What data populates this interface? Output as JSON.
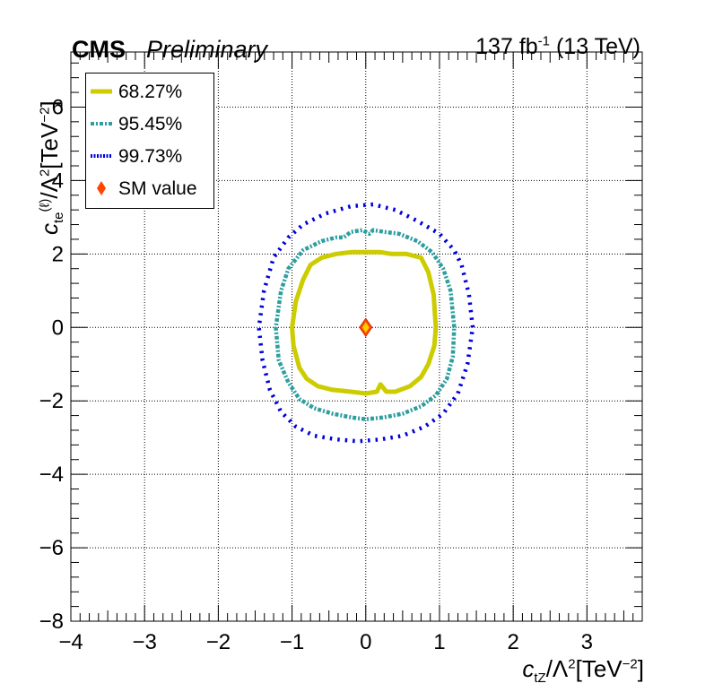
{
  "header": {
    "experiment": "CMS",
    "status": "Preliminary",
    "lumi_value": "137 fb",
    "lumi_exp": "-1",
    "lumi_energy": " (13 TeV)"
  },
  "axis_text": {
    "x_main": "c",
    "x_sub": "tZ",
    "x_rest": "/Λ",
    "x_sup2": "2",
    "x_unit": "[TeV",
    "x_unit_sup": "−2",
    "x_close": "]",
    "y_main": "c",
    "y_sub": "te",
    "y_sup": "(ℓ)",
    "y_rest": "/Λ",
    "y_sup2": "2",
    "y_unit": "[TeV",
    "y_unit_sup": "−2",
    "y_close": "]"
  },
  "legend": [
    {
      "label": "68.27%",
      "color": "#cccc00",
      "style": "solid-thick"
    },
    {
      "label": "95.45%",
      "color": "#2d9e9e",
      "style": "dash-dot"
    },
    {
      "label": "99.73%",
      "color": "#0000dd",
      "style": "dotted"
    },
    {
      "label": "SM value",
      "color": "#ff4500",
      "style": "diamond"
    }
  ],
  "chart_data": {
    "type": "line",
    "title": "",
    "xlabel": "c_tZ/Λ^2[TeV^-2]",
    "ylabel": "c_te^(ℓ)/Λ^2[TeV^-2]",
    "xlim": [
      -4,
      3.75
    ],
    "ylim": [
      -8,
      7.5
    ],
    "x_ticks": [
      -4,
      -3,
      -2,
      -1,
      0,
      1,
      2,
      3
    ],
    "y_ticks": [
      -8,
      -6,
      -4,
      -2,
      0,
      2,
      4,
      6
    ],
    "grid": true,
    "legend_position": "top-left",
    "series": [
      {
        "name": "68.27%",
        "color": "#cccc00",
        "points": [
          [
            0.95,
            0
          ],
          [
            0.92,
            0.9
          ],
          [
            0.85,
            1.5
          ],
          [
            0.75,
            1.9
          ],
          [
            0.55,
            2.0
          ],
          [
            0.35,
            2.0
          ],
          [
            0.2,
            2.05
          ],
          [
            0,
            2.05
          ],
          [
            -0.2,
            2.05
          ],
          [
            -0.4,
            2.0
          ],
          [
            -0.6,
            1.9
          ],
          [
            -0.75,
            1.7
          ],
          [
            -0.85,
            1.3
          ],
          [
            -0.95,
            0.7
          ],
          [
            -1.0,
            0
          ],
          [
            -0.98,
            -0.5
          ],
          [
            -0.9,
            -1.1
          ],
          [
            -0.8,
            -1.4
          ],
          [
            -0.65,
            -1.6
          ],
          [
            -0.45,
            -1.7
          ],
          [
            -0.2,
            -1.75
          ],
          [
            0,
            -1.8
          ],
          [
            0.15,
            -1.75
          ],
          [
            0.2,
            -1.55
          ],
          [
            0.28,
            -1.75
          ],
          [
            0.4,
            -1.75
          ],
          [
            0.6,
            -1.6
          ],
          [
            0.75,
            -1.35
          ],
          [
            0.85,
            -1.0
          ],
          [
            0.93,
            -0.5
          ]
        ]
      },
      {
        "name": "95.45%",
        "color": "#2d9e9e",
        "points": [
          [
            1.2,
            0
          ],
          [
            1.15,
            1.0
          ],
          [
            1.05,
            1.6
          ],
          [
            0.9,
            2.05
          ],
          [
            0.7,
            2.35
          ],
          [
            0.45,
            2.55
          ],
          [
            0.25,
            2.6
          ],
          [
            0.1,
            2.65
          ],
          [
            0.05,
            2.55
          ],
          [
            -0.05,
            2.65
          ],
          [
            -0.2,
            2.6
          ],
          [
            -0.3,
            2.45
          ],
          [
            -0.4,
            2.45
          ],
          [
            -0.6,
            2.35
          ],
          [
            -0.85,
            2.1
          ],
          [
            -1.05,
            1.6
          ],
          [
            -1.15,
            1.0
          ],
          [
            -1.22,
            0
          ],
          [
            -1.18,
            -0.9
          ],
          [
            -1.05,
            -1.5
          ],
          [
            -0.9,
            -1.95
          ],
          [
            -0.7,
            -2.2
          ],
          [
            -0.45,
            -2.35
          ],
          [
            -0.2,
            -2.45
          ],
          [
            0,
            -2.5
          ],
          [
            0.25,
            -2.45
          ],
          [
            0.5,
            -2.35
          ],
          [
            0.75,
            -2.15
          ],
          [
            0.95,
            -1.85
          ],
          [
            1.1,
            -1.4
          ],
          [
            1.18,
            -0.8
          ]
        ]
      },
      {
        "name": "99.73%",
        "color": "#0000dd",
        "points": [
          [
            1.45,
            0
          ],
          [
            1.4,
            0.9
          ],
          [
            1.3,
            1.7
          ],
          [
            1.2,
            2.1
          ],
          [
            1.0,
            2.55
          ],
          [
            0.7,
            2.9
          ],
          [
            0.4,
            3.2
          ],
          [
            0.1,
            3.35
          ],
          [
            -0.2,
            3.3
          ],
          [
            -0.55,
            3.1
          ],
          [
            -0.85,
            2.8
          ],
          [
            -1.05,
            2.45
          ],
          [
            -1.25,
            1.9
          ],
          [
            -1.38,
            1.0
          ],
          [
            -1.45,
            0
          ],
          [
            -1.4,
            -0.9
          ],
          [
            -1.3,
            -1.7
          ],
          [
            -1.15,
            -2.3
          ],
          [
            -0.95,
            -2.7
          ],
          [
            -0.7,
            -2.95
          ],
          [
            -0.4,
            -3.05
          ],
          [
            -0.1,
            -3.1
          ],
          [
            0.2,
            -3.05
          ],
          [
            0.5,
            -2.95
          ],
          [
            0.8,
            -2.7
          ],
          [
            1.05,
            -2.35
          ],
          [
            1.25,
            -1.8
          ],
          [
            1.38,
            -1.0
          ]
        ]
      },
      {
        "name": "SM value",
        "color": "#ff4500",
        "points": [
          [
            0,
            0
          ]
        ]
      }
    ]
  }
}
